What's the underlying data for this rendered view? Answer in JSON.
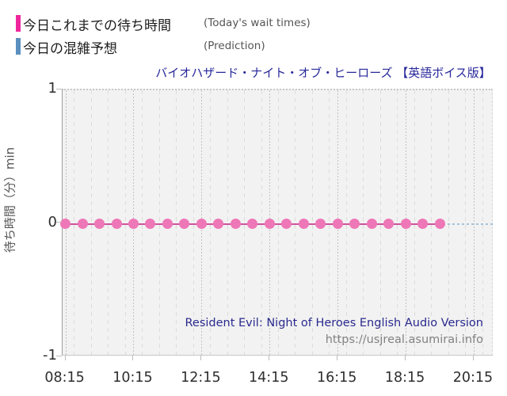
{
  "legend": {
    "today": {
      "label": "今日これまでの待ち時間",
      "sublabel": "(Today's wait times)",
      "color": "#ef259c"
    },
    "prediction": {
      "label": "今日の混雑予想",
      "sublabel": "(Prediction)",
      "color": "#5a8fbf"
    }
  },
  "chart": {
    "title": "バイオハザード・ナイト・オブ・ヒーローズ 【英語ボイス版】",
    "ylabel": "待ち時間（分）min",
    "annotation_line1": "Resident Evil: Night of Heroes English Audio Version",
    "annotation_line2": "https://usjreal.asumirai.info"
  },
  "chart_data": {
    "type": "line",
    "title": "バイオハザード・ナイト・オブ・ヒーローズ 【英語ボイス版】",
    "xlabel": "",
    "ylabel": "待ち時間（分）min",
    "ylim": [
      -1,
      1
    ],
    "yticks": [
      "1",
      "0",
      "-1"
    ],
    "ytick_values": [
      1,
      0,
      -1
    ],
    "xticks": [
      "08:15",
      "10:15",
      "12:15",
      "14:15",
      "16:15",
      "18:15",
      "20:15"
    ],
    "xlim": [
      "08:10",
      "20:50"
    ],
    "minor_grid_interval_minutes": 30,
    "grid": true,
    "legend_position": "top-left",
    "series": [
      {
        "name": "今日これまでの待ち時間",
        "name_en": "Today's wait times",
        "style": "scatter-line",
        "marker_color": "#ee77b7",
        "line_color": "#cf539d",
        "x": [
          "08:15",
          "08:45",
          "09:15",
          "09:45",
          "10:15",
          "10:45",
          "11:15",
          "11:45",
          "12:15",
          "12:45",
          "13:15",
          "13:45",
          "14:15",
          "14:45",
          "15:15",
          "15:45",
          "16:15",
          "16:45",
          "17:15",
          "17:45",
          "18:15",
          "18:45",
          "19:15"
        ],
        "values": [
          0,
          0,
          0,
          0,
          0,
          0,
          0,
          0,
          0,
          0,
          0,
          0,
          0,
          0,
          0,
          0,
          0,
          0,
          0,
          0,
          0,
          0,
          0
        ]
      },
      {
        "name": "今日の混雑予想",
        "name_en": "Prediction",
        "style": "dotted-line",
        "line_color": "#a5c3db",
        "x": [
          "08:10",
          "20:50"
        ],
        "values": [
          0,
          0
        ]
      }
    ],
    "annotations": [
      "Resident Evil: Night of Heroes English Audio Version",
      "https://usjreal.asumirai.info"
    ]
  }
}
